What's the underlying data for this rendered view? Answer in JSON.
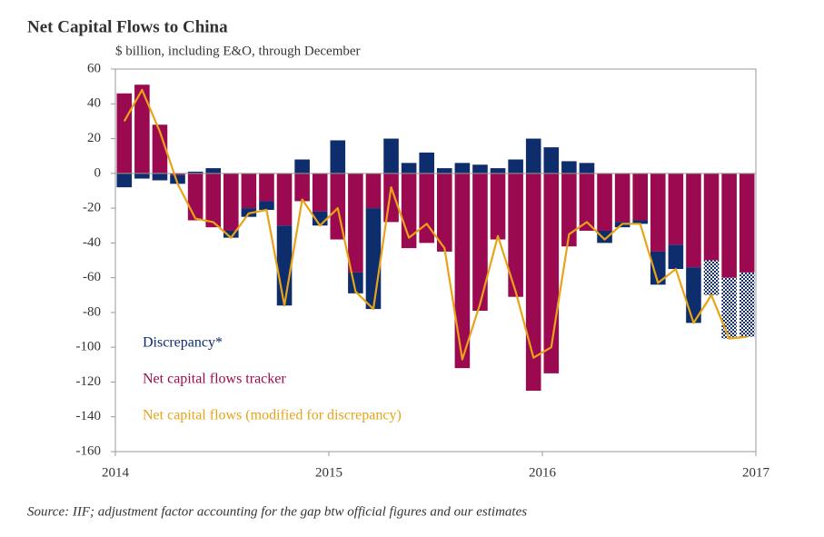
{
  "chart_data": {
    "type": "bar",
    "title": "Net Capital Flows to China",
    "subtitle": "$ billion,  including  E&O, through December",
    "source": "Source: IIF; adjustment factor accounting for the gap btw official figures and our estimates",
    "categories": [
      null,
      null,
      null,
      null,
      null,
      null,
      null,
      null,
      null,
      null,
      null,
      null,
      null,
      null,
      null,
      null,
      null,
      null,
      null,
      null,
      null,
      null,
      null,
      null,
      null,
      null,
      null,
      null,
      null,
      null,
      null,
      null,
      null,
      null,
      null,
      null
    ],
    "xlim": [
      2014,
      2017
    ],
    "xticks": [
      2014,
      2015,
      2016,
      2017
    ],
    "ylim": [
      -160,
      60
    ],
    "yticks": [
      -160,
      -140,
      -120,
      -100,
      -80,
      -60,
      -40,
      -20,
      0,
      20,
      40,
      60
    ],
    "series": [
      {
        "name": "Net capital flows tracker",
        "color": "#9b0a50",
        "type": "bar",
        "values": [
          46,
          51,
          28,
          -1,
          -27,
          -31,
          -33,
          -20,
          -16,
          -30,
          -16,
          -22,
          -38,
          -57,
          -20,
          -28,
          -43,
          -40,
          -45,
          -112,
          -79,
          -38,
          -71,
          -125,
          -115,
          -42,
          -33,
          -33,
          -28,
          -27,
          -45,
          -41,
          -54,
          -50,
          -60,
          -57
        ]
      },
      {
        "name": "Discrepancy*",
        "color": "#0d2d6c",
        "type": "bar",
        "stacked": true,
        "hatch": [
          false,
          false,
          false,
          false,
          false,
          false,
          false,
          false,
          false,
          false,
          false,
          false,
          false,
          false,
          false,
          false,
          false,
          false,
          false,
          false,
          false,
          false,
          false,
          false,
          false,
          false,
          false,
          false,
          false,
          false,
          false,
          false,
          false,
          true,
          true,
          true
        ],
        "values": [
          -8,
          -3,
          -4,
          -5,
          1,
          3,
          -4,
          -5,
          -5,
          -46,
          8,
          -8,
          19,
          -12,
          -58,
          20,
          6,
          12,
          3,
          6,
          5,
          3,
          8,
          20,
          15,
          7,
          6,
          -7,
          -3,
          -2,
          -19,
          -14,
          -32,
          -20,
          -35,
          -37
        ]
      },
      {
        "name": "Net capital flows (modified  for discrepancy)",
        "color": "#e8a317",
        "type": "line",
        "values": [
          30,
          48,
          24,
          -6,
          -26,
          -28,
          -37,
          -23,
          -21,
          -76,
          -15,
          -30,
          -20,
          -68,
          -78,
          -8,
          -37,
          -29,
          -43,
          -107,
          -75,
          -36,
          -68,
          -106,
          -100,
          -35,
          -28,
          -38,
          -29,
          -29,
          -63,
          -55,
          -86,
          -70,
          -95,
          -94
        ]
      }
    ],
    "zero_line": true
  }
}
